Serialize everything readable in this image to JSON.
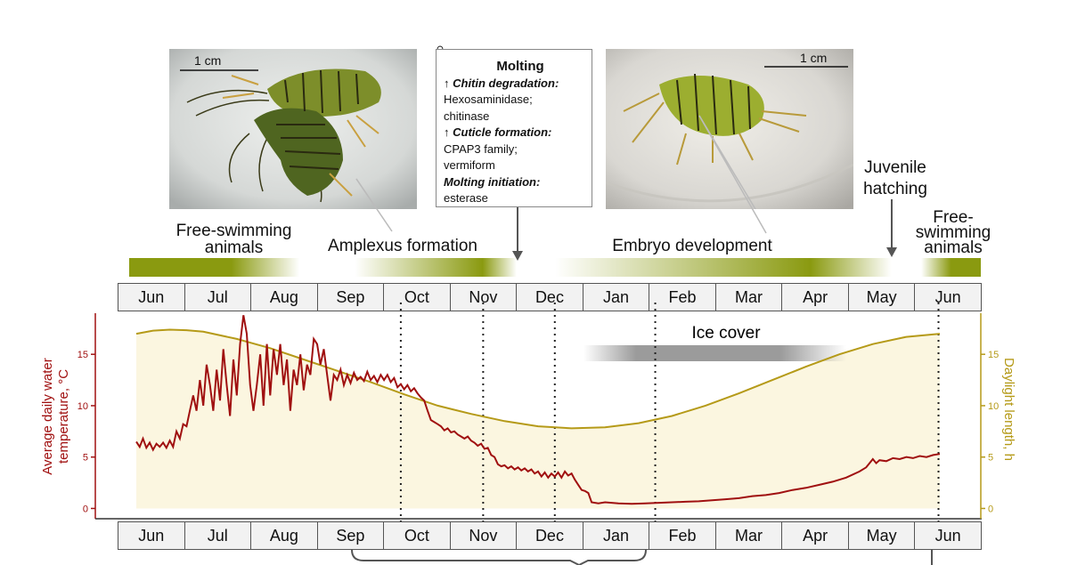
{
  "photos": {
    "left_scale": "1 cm",
    "right_scale": "1 cm"
  },
  "molting_box": {
    "symbol": "♀",
    "title": "Molting",
    "lines": [
      {
        "text": "↑ Chitin degradation:",
        "style": "hd"
      },
      {
        "text": "Hexosaminidase;",
        "style": "n"
      },
      {
        "text": "chitinase",
        "style": "n"
      },
      {
        "text": "↑ Cuticle formation:",
        "style": "hd"
      },
      {
        "text": "CPAP3 family;",
        "style": "n"
      },
      {
        "text": "vermiform",
        "style": "n"
      },
      {
        "text": "Molting initiation:",
        "style": "hd"
      },
      {
        "text": "esterase",
        "style": "n"
      }
    ]
  },
  "phases": {
    "free_swimming_left": "Free-swimming\nanimals",
    "amplexus": "Amplexus formation",
    "embryo": "Embryo development",
    "juvenile": "Juvenile\nhatching",
    "free_swimming_right": "Free-\nswimming\nanimals"
  },
  "months": [
    "Jun",
    "Jul",
    "Aug",
    "Sep",
    "Oct",
    "Nov",
    "Dec",
    "Jan",
    "Feb",
    "Mar",
    "Apr",
    "May",
    "Jun"
  ],
  "colors": {
    "bar": "#8a9a10",
    "temperature": "#a01010",
    "daylight": "#b59a18",
    "fill": "#fbf6e0",
    "ice": "#909090"
  },
  "chart_data": {
    "type": "line",
    "ice_label": "Ice cover",
    "ylabel_left": "Average daily water temperature, °C",
    "ylabel_right": "Daylight length, h",
    "ylim": [
      -1,
      19
    ],
    "left_ticks": [
      "0",
      "5",
      "10",
      "15"
    ],
    "right_ticks": [
      "0",
      "5",
      "10",
      "15"
    ],
    "x_unit": "months from start of June",
    "x_range": [
      0,
      12
    ],
    "dotted_lines_x": [
      3.95,
      5.18,
      6.25,
      7.75,
      11.98
    ],
    "daylight": [
      [
        0,
        17.0
      ],
      [
        0.25,
        17.3
      ],
      [
        0.5,
        17.4
      ],
      [
        0.75,
        17.35
      ],
      [
        1,
        17.2
      ],
      [
        1.5,
        16.5
      ],
      [
        2,
        15.6
      ],
      [
        2.5,
        14.5
      ],
      [
        3,
        13.4
      ],
      [
        3.5,
        12.3
      ],
      [
        4,
        11.1
      ],
      [
        4.5,
        10.0
      ],
      [
        5,
        9.2
      ],
      [
        5.5,
        8.5
      ],
      [
        6,
        8.0
      ],
      [
        6.5,
        7.8
      ],
      [
        7,
        7.9
      ],
      [
        7.5,
        8.3
      ],
      [
        8,
        9.0
      ],
      [
        8.5,
        10.0
      ],
      [
        9,
        11.2
      ],
      [
        9.5,
        12.5
      ],
      [
        10,
        13.8
      ],
      [
        10.5,
        15.0
      ],
      [
        11,
        16.0
      ],
      [
        11.5,
        16.7
      ],
      [
        12,
        17.0
      ]
    ],
    "temperature": [
      [
        0,
        6.5
      ],
      [
        0.05,
        6.0
      ],
      [
        0.1,
        6.8
      ],
      [
        0.15,
        5.9
      ],
      [
        0.2,
        6.4
      ],
      [
        0.25,
        5.7
      ],
      [
        0.3,
        6.3
      ],
      [
        0.35,
        6.0
      ],
      [
        0.4,
        6.4
      ],
      [
        0.45,
        5.9
      ],
      [
        0.5,
        6.6
      ],
      [
        0.55,
        6.0
      ],
      [
        0.6,
        7.5
      ],
      [
        0.65,
        6.8
      ],
      [
        0.7,
        8.2
      ],
      [
        0.75,
        8.0
      ],
      [
        0.8,
        9.5
      ],
      [
        0.85,
        11.0
      ],
      [
        0.9,
        9.5
      ],
      [
        0.95,
        12.5
      ],
      [
        1.0,
        10.0
      ],
      [
        1.05,
        14.0
      ],
      [
        1.1,
        12.0
      ],
      [
        1.15,
        9.5
      ],
      [
        1.2,
        13.5
      ],
      [
        1.25,
        10.5
      ],
      [
        1.3,
        15.5
      ],
      [
        1.35,
        12.0
      ],
      [
        1.4,
        9.0
      ],
      [
        1.45,
        14.5
      ],
      [
        1.5,
        11.0
      ],
      [
        1.55,
        16.0
      ],
      [
        1.6,
        18.8
      ],
      [
        1.65,
        17.0
      ],
      [
        1.7,
        12.0
      ],
      [
        1.75,
        9.5
      ],
      [
        1.8,
        12.0
      ],
      [
        1.85,
        15.0
      ],
      [
        1.9,
        10.0
      ],
      [
        1.95,
        16.0
      ],
      [
        2.0,
        11.0
      ],
      [
        2.05,
        15.5
      ],
      [
        2.1,
        13.0
      ],
      [
        2.15,
        16.0
      ],
      [
        2.2,
        12.0
      ],
      [
        2.25,
        14.5
      ],
      [
        2.3,
        9.5
      ],
      [
        2.35,
        13.5
      ],
      [
        2.4,
        12.0
      ],
      [
        2.45,
        15.0
      ],
      [
        2.5,
        11.5
      ],
      [
        2.55,
        14.0
      ],
      [
        2.6,
        13.0
      ],
      [
        2.65,
        16.5
      ],
      [
        2.7,
        16.0
      ],
      [
        2.75,
        14.0
      ],
      [
        2.8,
        15.5
      ],
      [
        2.85,
        13.0
      ],
      [
        2.9,
        10.5
      ],
      [
        2.95,
        13.0
      ],
      [
        3.0,
        12.5
      ],
      [
        3.05,
        13.5
      ],
      [
        3.1,
        12.0
      ],
      [
        3.15,
        13.0
      ],
      [
        3.2,
        12.2
      ],
      [
        3.25,
        13.2
      ],
      [
        3.3,
        12.5
      ],
      [
        3.35,
        12.8
      ],
      [
        3.4,
        12.4
      ],
      [
        3.45,
        13.3
      ],
      [
        3.5,
        12.5
      ],
      [
        3.55,
        12.9
      ],
      [
        3.6,
        12.3
      ],
      [
        3.65,
        13.0
      ],
      [
        3.7,
        12.5
      ],
      [
        3.75,
        13.0
      ],
      [
        3.8,
        12.3
      ],
      [
        3.85,
        12.7
      ],
      [
        3.9,
        11.8
      ],
      [
        3.95,
        12.1
      ],
      [
        4.0,
        11.6
      ],
      [
        4.05,
        12.0
      ],
      [
        4.1,
        11.4
      ],
      [
        4.15,
        11.7
      ],
      [
        4.2,
        11.2
      ],
      [
        4.25,
        10.8
      ],
      [
        4.3,
        10.5
      ],
      [
        4.35,
        9.5
      ],
      [
        4.4,
        8.6
      ],
      [
        4.45,
        8.4
      ],
      [
        4.5,
        8.2
      ],
      [
        4.55,
        8.0
      ],
      [
        4.6,
        7.6
      ],
      [
        4.65,
        7.8
      ],
      [
        4.7,
        7.4
      ],
      [
        4.75,
        7.5
      ],
      [
        4.8,
        7.2
      ],
      [
        4.85,
        7.0
      ],
      [
        4.9,
        6.8
      ],
      [
        4.95,
        7.0
      ],
      [
        5.0,
        6.6
      ],
      [
        5.05,
        6.4
      ],
      [
        5.1,
        6.1
      ],
      [
        5.15,
        6.3
      ],
      [
        5.2,
        5.8
      ],
      [
        5.25,
        5.9
      ],
      [
        5.3,
        5.2
      ],
      [
        5.35,
        5.0
      ],
      [
        5.4,
        4.3
      ],
      [
        5.45,
        4.1
      ],
      [
        5.5,
        4.2
      ],
      [
        5.55,
        3.9
      ],
      [
        5.6,
        4.1
      ],
      [
        5.65,
        3.8
      ],
      [
        5.7,
        4.0
      ],
      [
        5.75,
        3.7
      ],
      [
        5.8,
        3.9
      ],
      [
        5.85,
        3.6
      ],
      [
        5.9,
        3.8
      ],
      [
        5.95,
        3.4
      ],
      [
        6.0,
        3.6
      ],
      [
        6.05,
        3.1
      ],
      [
        6.1,
        3.5
      ],
      [
        6.15,
        3.0
      ],
      [
        6.2,
        3.4
      ],
      [
        6.25,
        3.1
      ],
      [
        6.3,
        3.5
      ],
      [
        6.35,
        3.0
      ],
      [
        6.4,
        3.6
      ],
      [
        6.45,
        3.2
      ],
      [
        6.5,
        3.4
      ],
      [
        6.55,
        2.8
      ],
      [
        6.6,
        2.3
      ],
      [
        6.65,
        1.8
      ],
      [
        6.7,
        1.7
      ],
      [
        6.75,
        1.5
      ],
      [
        6.8,
        0.6
      ],
      [
        6.9,
        0.5
      ],
      [
        7.0,
        0.6
      ],
      [
        7.2,
        0.5
      ],
      [
        7.4,
        0.45
      ],
      [
        7.6,
        0.5
      ],
      [
        7.8,
        0.55
      ],
      [
        8.0,
        0.6
      ],
      [
        8.2,
        0.65
      ],
      [
        8.4,
        0.7
      ],
      [
        8.6,
        0.8
      ],
      [
        8.8,
        0.9
      ],
      [
        9.0,
        1.0
      ],
      [
        9.2,
        1.2
      ],
      [
        9.4,
        1.3
      ],
      [
        9.6,
        1.5
      ],
      [
        9.8,
        1.8
      ],
      [
        10.0,
        2.0
      ],
      [
        10.2,
        2.3
      ],
      [
        10.4,
        2.6
      ],
      [
        10.6,
        3.0
      ],
      [
        10.8,
        3.6
      ],
      [
        10.9,
        4.0
      ],
      [
        11.0,
        4.8
      ],
      [
        11.05,
        4.4
      ],
      [
        11.1,
        4.7
      ],
      [
        11.2,
        4.6
      ],
      [
        11.3,
        4.9
      ],
      [
        11.4,
        4.8
      ],
      [
        11.5,
        5.0
      ],
      [
        11.6,
        4.9
      ],
      [
        11.7,
        5.1
      ],
      [
        11.8,
        5.0
      ],
      [
        11.9,
        5.2
      ],
      [
        12.0,
        5.3
      ]
    ]
  }
}
